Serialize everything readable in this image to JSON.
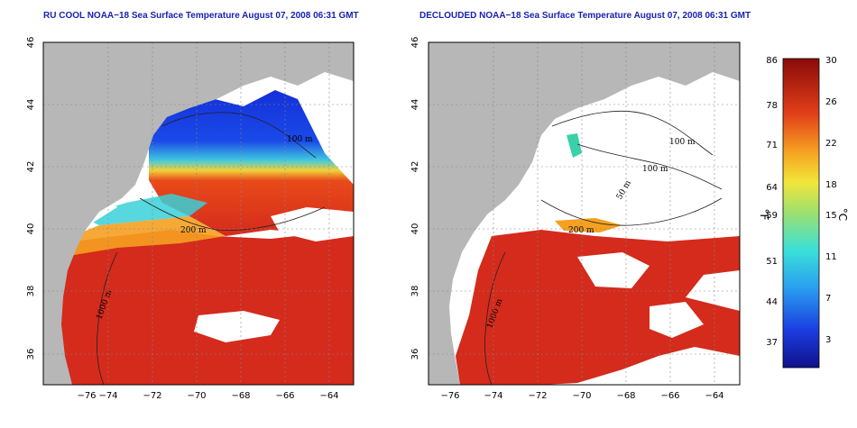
{
  "left_panel": {
    "title": "RU COOL NOAA−18 Sea Surface Temperature August 07, 2008 06:31 GMT",
    "contour_labels": [
      "100 m",
      "200 m",
      "1000 m"
    ]
  },
  "right_panel": {
    "title": "DECLOUDED NOAA−18 Sea Surface Temperature August 07, 2008 06:31 GMT",
    "contour_labels": [
      "100 m",
      "100 m",
      "50 m",
      "200 m",
      "1000 m"
    ]
  },
  "axes": {
    "lon_ticks": [
      "−76",
      "−74",
      "−72",
      "−70",
      "−68",
      "−66",
      "−64"
    ],
    "lat_ticks": [
      "46",
      "44",
      "42",
      "40",
      "38",
      "36"
    ]
  },
  "colorbar": {
    "fahrenheit_label": "°F",
    "celsius_label": "°C",
    "fahrenheit_ticks": [
      "86",
      "78",
      "71",
      "64",
      "59",
      "51",
      "44",
      "37"
    ],
    "celsius_ticks": [
      "30",
      "26",
      "22",
      "18",
      "15",
      "11",
      "7",
      "3"
    ]
  },
  "colors": {
    "land": "#b7b7b7",
    "cloud": "#ffffff",
    "warm": "#d42b1c",
    "cool": "#1430d8",
    "title": "#1a22b0"
  }
}
